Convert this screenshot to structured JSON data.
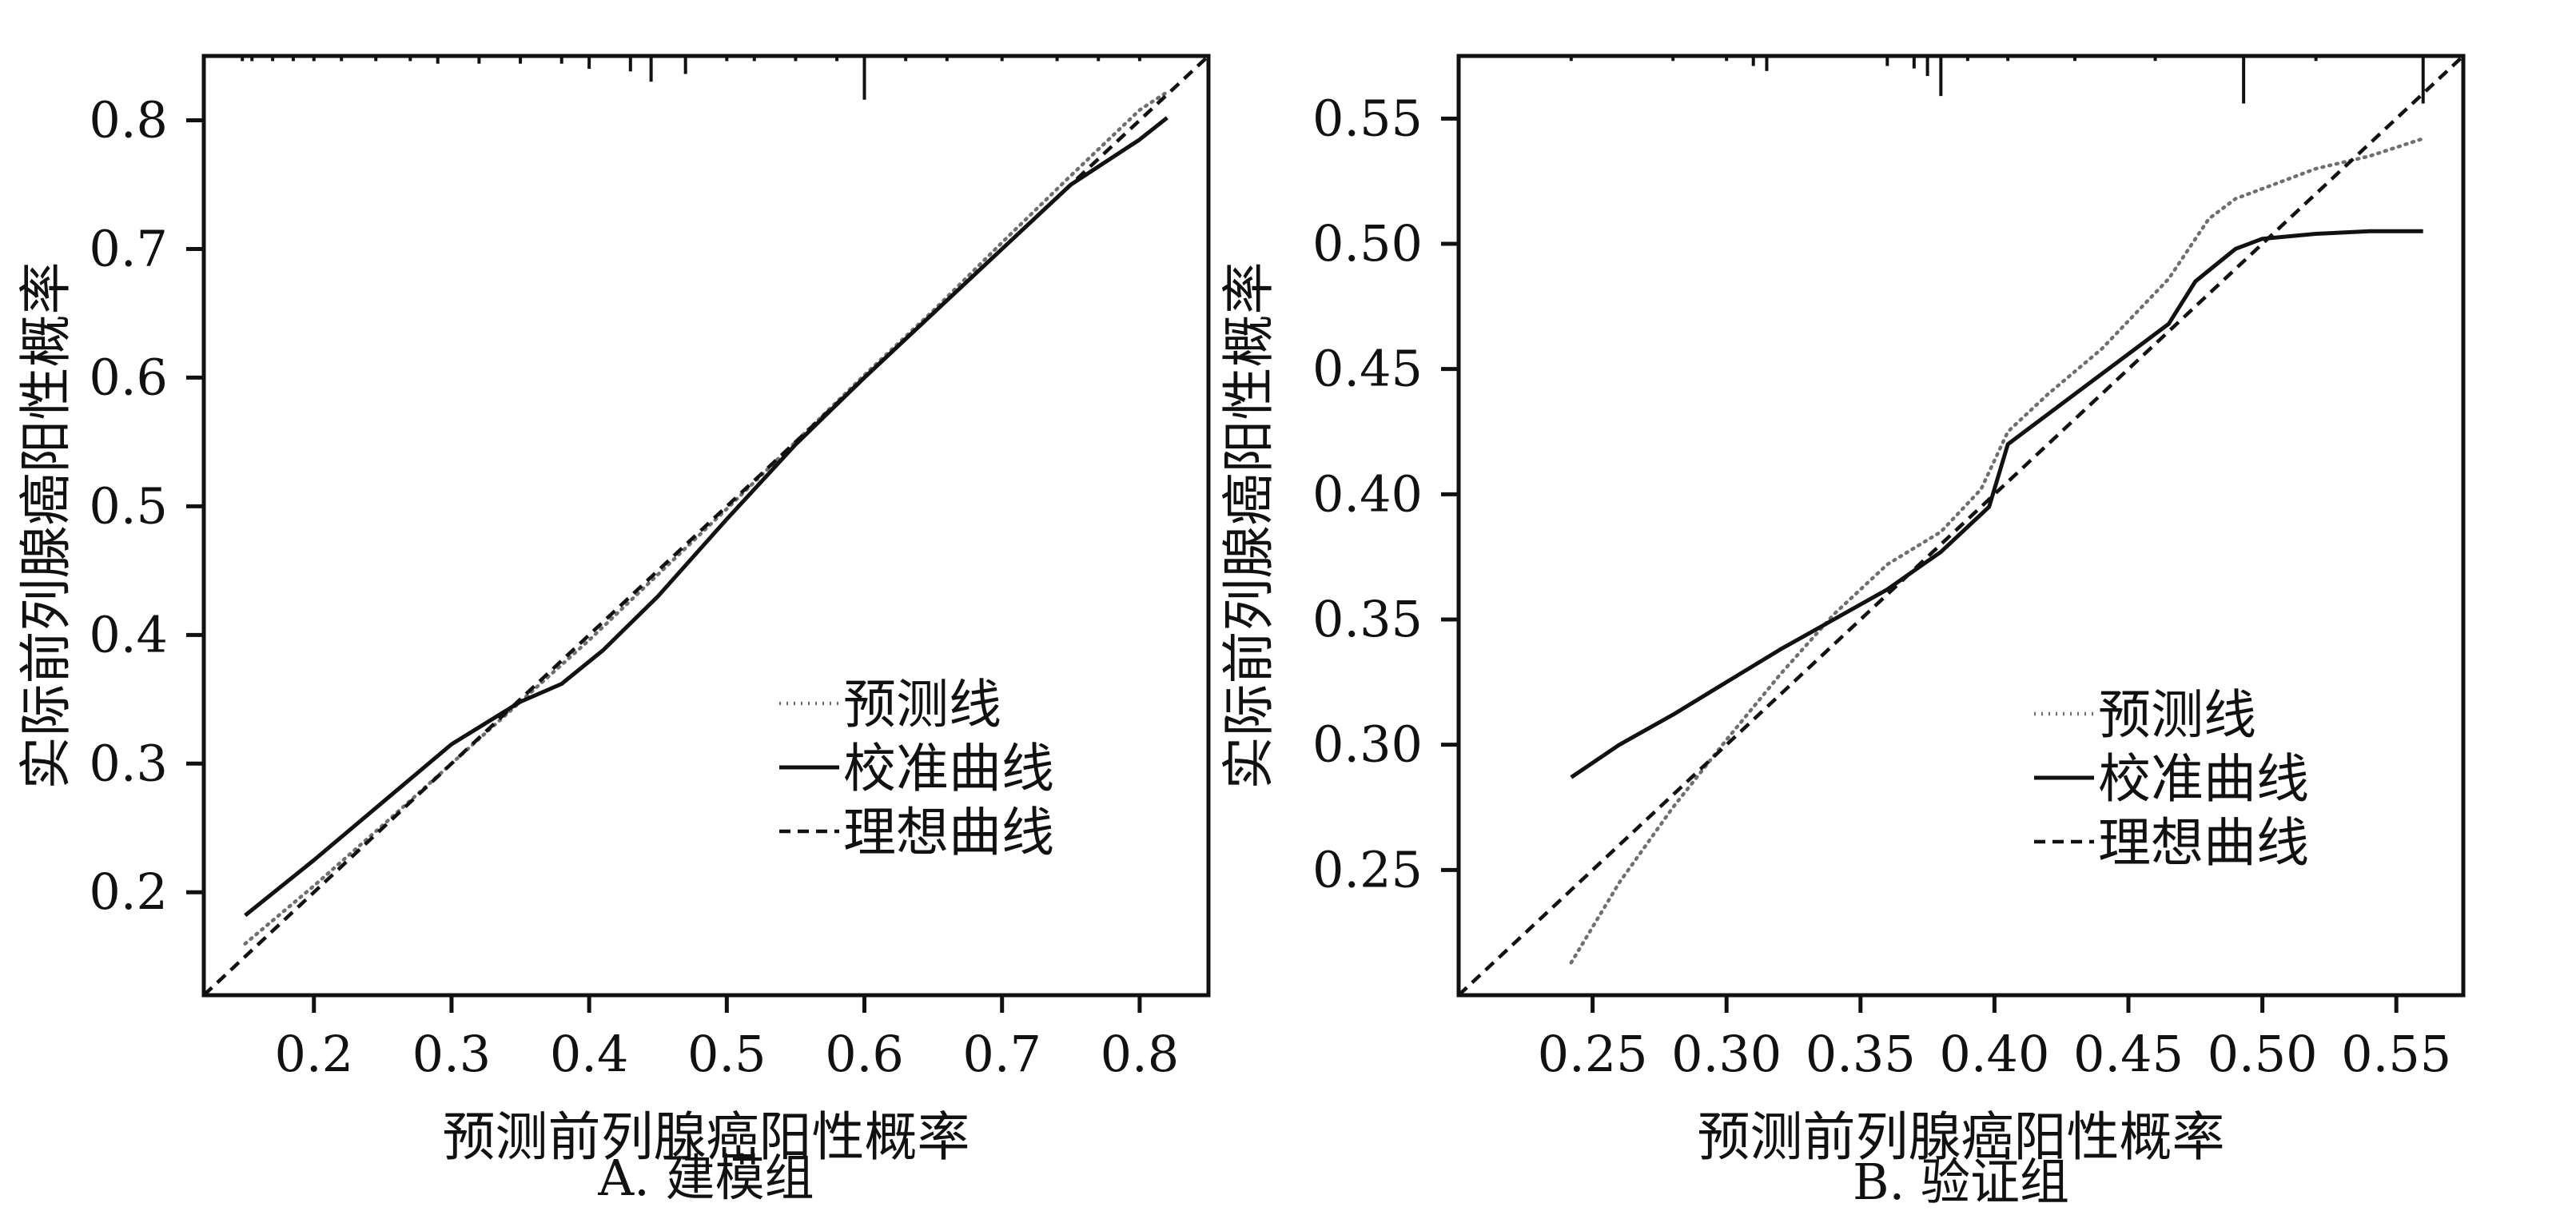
{
  "chart_data": [
    {
      "type": "line",
      "title": "",
      "caption": "A. 建模组",
      "xlabel": "预测前列腺癌阳性概率",
      "ylabel": "实际前列腺癌阳性概率",
      "xlim": [
        0.12,
        0.85
      ],
      "ylim": [
        0.12,
        0.85
      ],
      "xticks": [
        0.2,
        0.3,
        0.4,
        0.5,
        0.6,
        0.7,
        0.8
      ],
      "yticks": [
        0.2,
        0.3,
        0.4,
        0.5,
        0.6,
        0.7,
        0.8
      ],
      "tick_labels": [
        "0.2",
        "0.3",
        "0.4",
        "0.5",
        "0.6",
        "0.7",
        "0.8"
      ],
      "legend_position": "bottom-right",
      "grid": false,
      "rug_x": [
        0.148,
        0.155,
        0.17,
        0.185,
        0.2,
        0.22,
        0.245,
        0.27,
        0.29,
        0.32,
        0.35,
        0.38,
        0.4,
        0.43,
        0.445,
        0.47,
        0.5,
        0.52,
        0.55,
        0.58,
        0.6,
        0.63,
        0.66,
        0.7,
        0.74,
        0.77,
        0.8
      ],
      "rug_len": [
        0.004,
        0.004,
        0.004,
        0.004,
        0.004,
        0.004,
        0.004,
        0.004,
        0.006,
        0.006,
        0.006,
        0.006,
        0.01,
        0.012,
        0.02,
        0.014,
        0.004,
        0.004,
        0.004,
        0.004,
        0.034,
        0.004,
        0.004,
        0.004,
        0.004,
        0.004,
        0.004
      ],
      "series": [
        {
          "name": "预测线",
          "style": "dotted",
          "color": "#6f6f6f",
          "x": [
            0.15,
            0.2,
            0.25,
            0.3,
            0.35,
            0.4,
            0.45,
            0.5,
            0.55,
            0.6,
            0.65,
            0.7,
            0.75,
            0.8,
            0.82
          ],
          "y": [
            0.16,
            0.205,
            0.252,
            0.3,
            0.348,
            0.396,
            0.447,
            0.498,
            0.55,
            0.602,
            0.652,
            0.705,
            0.757,
            0.808,
            0.822
          ]
        },
        {
          "name": "校准曲线",
          "style": "solid",
          "color": "#111111",
          "x": [
            0.15,
            0.2,
            0.25,
            0.3,
            0.35,
            0.38,
            0.41,
            0.45,
            0.5,
            0.55,
            0.6,
            0.65,
            0.7,
            0.75,
            0.8,
            0.82
          ],
          "y": [
            0.182,
            0.225,
            0.27,
            0.315,
            0.348,
            0.362,
            0.388,
            0.43,
            0.49,
            0.548,
            0.6,
            0.65,
            0.7,
            0.75,
            0.785,
            0.802
          ]
        },
        {
          "name": "理想曲线",
          "style": "dashed",
          "color": "#111111",
          "x": [
            0.12,
            0.85
          ],
          "y": [
            0.12,
            0.85
          ]
        }
      ]
    },
    {
      "type": "line",
      "title": "",
      "caption": "B. 验证组",
      "xlabel": "预测前列腺癌阳性概率",
      "ylabel": "实际前列腺癌阳性概率",
      "xlim": [
        0.2,
        0.575
      ],
      "ylim": [
        0.2,
        0.575
      ],
      "xticks": [
        0.25,
        0.3,
        0.35,
        0.4,
        0.45,
        0.5,
        0.55
      ],
      "yticks": [
        0.25,
        0.3,
        0.35,
        0.4,
        0.45,
        0.5,
        0.55
      ],
      "tick_labels": [
        "0.25",
        "0.30",
        "0.35",
        "0.40",
        "0.45",
        "0.50",
        "0.55"
      ],
      "legend_position": "bottom-right",
      "grid": false,
      "rug_x": [
        0.242,
        0.28,
        0.3,
        0.31,
        0.315,
        0.36,
        0.37,
        0.375,
        0.38,
        0.39,
        0.405,
        0.43,
        0.46,
        0.493,
        0.52,
        0.56
      ],
      "rug_len": [
        0.002,
        0.002,
        0.002,
        0.004,
        0.006,
        0.004,
        0.005,
        0.008,
        0.016,
        0.002,
        0.002,
        0.002,
        0.002,
        0.019,
        0.002,
        0.019
      ],
      "series": [
        {
          "name": "预测线",
          "style": "dotted",
          "color": "#6f6f6f",
          "x": [
            0.242,
            0.26,
            0.28,
            0.3,
            0.32,
            0.34,
            0.36,
            0.38,
            0.395,
            0.405,
            0.42,
            0.44,
            0.465,
            0.48,
            0.49,
            0.5,
            0.52,
            0.54,
            0.56
          ],
          "y": [
            0.213,
            0.245,
            0.275,
            0.302,
            0.328,
            0.352,
            0.372,
            0.385,
            0.402,
            0.425,
            0.44,
            0.458,
            0.486,
            0.51,
            0.518,
            0.522,
            0.53,
            0.535,
            0.542
          ]
        },
        {
          "name": "校准曲线",
          "style": "solid",
          "color": "#111111",
          "x": [
            0.242,
            0.26,
            0.28,
            0.3,
            0.32,
            0.34,
            0.36,
            0.38,
            0.398,
            0.405,
            0.42,
            0.44,
            0.465,
            0.475,
            0.49,
            0.5,
            0.52,
            0.54,
            0.56
          ],
          "y": [
            0.287,
            0.3,
            0.312,
            0.325,
            0.338,
            0.35,
            0.362,
            0.377,
            0.395,
            0.42,
            0.432,
            0.448,
            0.468,
            0.485,
            0.498,
            0.502,
            0.504,
            0.505,
            0.505
          ]
        },
        {
          "name": "理想曲线",
          "style": "dashed",
          "color": "#111111",
          "x": [
            0.2,
            0.575
          ],
          "y": [
            0.2,
            0.575
          ]
        }
      ]
    }
  ]
}
